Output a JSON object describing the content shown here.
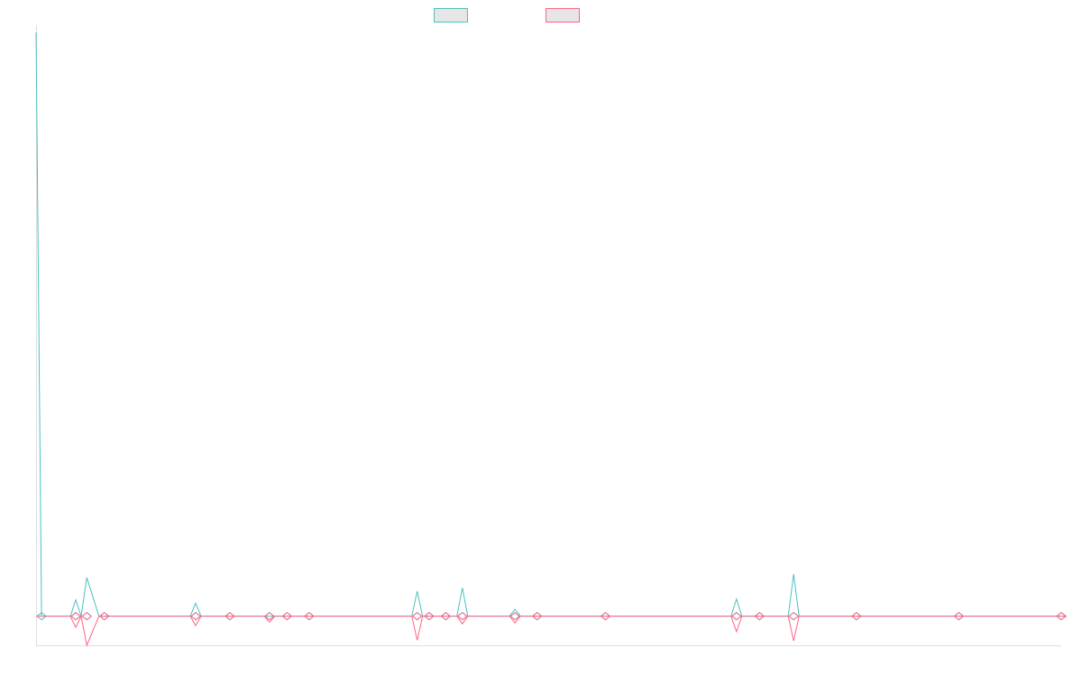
{
  "chart_data": {
    "type": "line",
    "title": "",
    "xlabel": "",
    "ylabel": "",
    "legend_placement": "top-center",
    "grid": false,
    "ylim": [
      -34,
      680
    ],
    "series": [
      {
        "color": "#4bc0c0",
        "points": [
          [
            0,
            680
          ],
          [
            6,
            0
          ],
          [
            43,
            19
          ],
          [
            55,
            45
          ],
          [
            74,
            0
          ],
          [
            173,
            15
          ],
          [
            210,
            0
          ],
          [
            253,
            0
          ],
          [
            272,
            0
          ],
          [
            296,
            0
          ],
          [
            413,
            29
          ],
          [
            426,
            0
          ],
          [
            444,
            0
          ],
          [
            462,
            33
          ],
          [
            519,
            8
          ],
          [
            543,
            0
          ],
          [
            617,
            0
          ],
          [
            759,
            20
          ],
          [
            784,
            0
          ],
          [
            821,
            49
          ],
          [
            889,
            0
          ],
          [
            1000,
            0
          ],
          [
            1111,
            0
          ]
        ]
      },
      {
        "color": "#ff6384",
        "points": [
          [
            0,
            0
          ],
          [
            43,
            -13
          ],
          [
            55,
            -34
          ],
          [
            74,
            0
          ],
          [
            173,
            -11
          ],
          [
            210,
            0
          ],
          [
            253,
            -7
          ],
          [
            272,
            0
          ],
          [
            296,
            0
          ],
          [
            413,
            -28
          ],
          [
            426,
            0
          ],
          [
            444,
            0
          ],
          [
            462,
            -9
          ],
          [
            519,
            -8
          ],
          [
            543,
            0
          ],
          [
            617,
            0
          ],
          [
            759,
            -18
          ],
          [
            784,
            0
          ],
          [
            821,
            -29
          ],
          [
            889,
            0
          ],
          [
            1000,
            0
          ],
          [
            1111,
            0
          ]
        ]
      }
    ]
  }
}
